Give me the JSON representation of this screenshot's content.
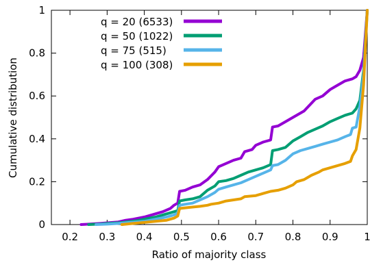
{
  "chart_data": {
    "type": "line",
    "title": "",
    "xlabel": "Ratio of majority class",
    "ylabel": "Cumulative distribution",
    "xlim": [
      0.15,
      1.0
    ],
    "ylim": [
      0,
      1
    ],
    "xticks": [
      0.2,
      0.3,
      0.4,
      0.5,
      0.6,
      0.7,
      0.8,
      0.9,
      1
    ],
    "yticks": [
      0,
      0.2,
      0.4,
      0.6,
      0.8,
      1
    ],
    "grid": false,
    "legend_placement": "top-left",
    "series": [
      {
        "name": "q = 20 (6533)",
        "color": "#9400d3",
        "points": [
          [
            0.23,
            0.0
          ],
          [
            0.25,
            0.002
          ],
          [
            0.28,
            0.005
          ],
          [
            0.3,
            0.008
          ],
          [
            0.33,
            0.012
          ],
          [
            0.35,
            0.02
          ],
          [
            0.37,
            0.025
          ],
          [
            0.4,
            0.035
          ],
          [
            0.42,
            0.045
          ],
          [
            0.45,
            0.06
          ],
          [
            0.47,
            0.075
          ],
          [
            0.48,
            0.09
          ],
          [
            0.49,
            0.1
          ],
          [
            0.495,
            0.155
          ],
          [
            0.51,
            0.16
          ],
          [
            0.53,
            0.175
          ],
          [
            0.55,
            0.185
          ],
          [
            0.57,
            0.21
          ],
          [
            0.59,
            0.245
          ],
          [
            0.6,
            0.27
          ],
          [
            0.62,
            0.285
          ],
          [
            0.64,
            0.3
          ],
          [
            0.66,
            0.31
          ],
          [
            0.67,
            0.34
          ],
          [
            0.69,
            0.35
          ],
          [
            0.7,
            0.37
          ],
          [
            0.72,
            0.385
          ],
          [
            0.74,
            0.395
          ],
          [
            0.745,
            0.455
          ],
          [
            0.76,
            0.46
          ],
          [
            0.78,
            0.48
          ],
          [
            0.8,
            0.5
          ],
          [
            0.83,
            0.53
          ],
          [
            0.86,
            0.585
          ],
          [
            0.88,
            0.6
          ],
          [
            0.9,
            0.63
          ],
          [
            0.92,
            0.65
          ],
          [
            0.94,
            0.67
          ],
          [
            0.96,
            0.68
          ],
          [
            0.97,
            0.69
          ],
          [
            0.98,
            0.72
          ],
          [
            0.99,
            0.78
          ],
          [
            1.0,
            1.0
          ]
        ]
      },
      {
        "name": "q = 50 (1022)",
        "color": "#009e73",
        "points": [
          [
            0.25,
            0.0
          ],
          [
            0.28,
            0.002
          ],
          [
            0.3,
            0.005
          ],
          [
            0.33,
            0.008
          ],
          [
            0.35,
            0.012
          ],
          [
            0.38,
            0.018
          ],
          [
            0.4,
            0.025
          ],
          [
            0.43,
            0.035
          ],
          [
            0.45,
            0.045
          ],
          [
            0.47,
            0.055
          ],
          [
            0.49,
            0.065
          ],
          [
            0.495,
            0.11
          ],
          [
            0.51,
            0.115
          ],
          [
            0.53,
            0.12
          ],
          [
            0.55,
            0.13
          ],
          [
            0.57,
            0.16
          ],
          [
            0.59,
            0.18
          ],
          [
            0.6,
            0.2
          ],
          [
            0.62,
            0.205
          ],
          [
            0.64,
            0.215
          ],
          [
            0.66,
            0.23
          ],
          [
            0.68,
            0.245
          ],
          [
            0.7,
            0.255
          ],
          [
            0.72,
            0.265
          ],
          [
            0.74,
            0.28
          ],
          [
            0.745,
            0.345
          ],
          [
            0.76,
            0.35
          ],
          [
            0.78,
            0.36
          ],
          [
            0.8,
            0.39
          ],
          [
            0.82,
            0.41
          ],
          [
            0.84,
            0.43
          ],
          [
            0.86,
            0.445
          ],
          [
            0.88,
            0.46
          ],
          [
            0.9,
            0.48
          ],
          [
            0.92,
            0.495
          ],
          [
            0.94,
            0.51
          ],
          [
            0.96,
            0.52
          ],
          [
            0.97,
            0.54
          ],
          [
            0.98,
            0.58
          ],
          [
            0.99,
            0.72
          ],
          [
            1.0,
            1.0
          ]
        ]
      },
      {
        "name": "q = 75   (515)",
        "color": "#56b4e9",
        "points": [
          [
            0.27,
            0.0
          ],
          [
            0.3,
            0.002
          ],
          [
            0.33,
            0.005
          ],
          [
            0.36,
            0.01
          ],
          [
            0.4,
            0.015
          ],
          [
            0.43,
            0.025
          ],
          [
            0.46,
            0.035
          ],
          [
            0.48,
            0.045
          ],
          [
            0.49,
            0.055
          ],
          [
            0.495,
            0.09
          ],
          [
            0.51,
            0.095
          ],
          [
            0.53,
            0.1
          ],
          [
            0.55,
            0.115
          ],
          [
            0.57,
            0.13
          ],
          [
            0.59,
            0.15
          ],
          [
            0.6,
            0.165
          ],
          [
            0.62,
            0.175
          ],
          [
            0.64,
            0.185
          ],
          [
            0.66,
            0.195
          ],
          [
            0.68,
            0.21
          ],
          [
            0.7,
            0.225
          ],
          [
            0.72,
            0.24
          ],
          [
            0.74,
            0.255
          ],
          [
            0.745,
            0.275
          ],
          [
            0.76,
            0.28
          ],
          [
            0.78,
            0.3
          ],
          [
            0.79,
            0.315
          ],
          [
            0.8,
            0.33
          ],
          [
            0.82,
            0.345
          ],
          [
            0.84,
            0.355
          ],
          [
            0.86,
            0.365
          ],
          [
            0.88,
            0.375
          ],
          [
            0.9,
            0.385
          ],
          [
            0.92,
            0.395
          ],
          [
            0.94,
            0.41
          ],
          [
            0.955,
            0.42
          ],
          [
            0.96,
            0.45
          ],
          [
            0.97,
            0.455
          ],
          [
            0.98,
            0.55
          ],
          [
            0.99,
            0.7
          ],
          [
            1.0,
            1.0
          ]
        ]
      },
      {
        "name": "q = 100 (308)",
        "color": "#e69f00",
        "points": [
          [
            0.34,
            0.0
          ],
          [
            0.37,
            0.005
          ],
          [
            0.4,
            0.01
          ],
          [
            0.43,
            0.015
          ],
          [
            0.46,
            0.02
          ],
          [
            0.48,
            0.03
          ],
          [
            0.49,
            0.04
          ],
          [
            0.495,
            0.075
          ],
          [
            0.52,
            0.08
          ],
          [
            0.55,
            0.085
          ],
          [
            0.57,
            0.09
          ],
          [
            0.58,
            0.095
          ],
          [
            0.6,
            0.1
          ],
          [
            0.62,
            0.11
          ],
          [
            0.64,
            0.115
          ],
          [
            0.66,
            0.12
          ],
          [
            0.67,
            0.13
          ],
          [
            0.7,
            0.135
          ],
          [
            0.72,
            0.145
          ],
          [
            0.74,
            0.155
          ],
          [
            0.76,
            0.16
          ],
          [
            0.78,
            0.17
          ],
          [
            0.8,
            0.185
          ],
          [
            0.81,
            0.2
          ],
          [
            0.83,
            0.21
          ],
          [
            0.85,
            0.23
          ],
          [
            0.87,
            0.245
          ],
          [
            0.88,
            0.255
          ],
          [
            0.9,
            0.265
          ],
          [
            0.92,
            0.275
          ],
          [
            0.94,
            0.285
          ],
          [
            0.955,
            0.295
          ],
          [
            0.96,
            0.32
          ],
          [
            0.97,
            0.35
          ],
          [
            0.98,
            0.45
          ],
          [
            0.99,
            0.65
          ],
          [
            1.0,
            1.0
          ]
        ]
      }
    ]
  }
}
